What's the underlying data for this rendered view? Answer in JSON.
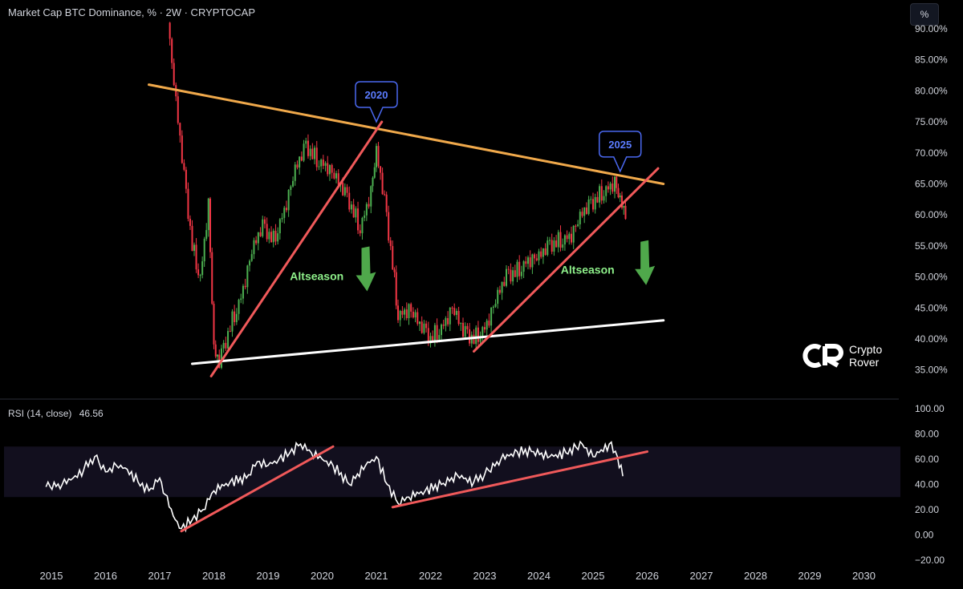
{
  "header": {
    "title": "Market Cap BTC Dominance, % · 2W · CRYPTOCAP",
    "unit_button": "%"
  },
  "rsi": {
    "label": "RSI (14, close)",
    "value": "46.56"
  },
  "brand": {
    "line1": "Crypto",
    "line2": "Rover"
  },
  "chart_data": [
    {
      "type": "candlestick",
      "title": "Market Cap BTC Dominance, % · 2W · CRYPTOCAP",
      "ylim": [
        33,
        92
      ],
      "yticks": [
        "90.00%",
        "85.00%",
        "80.00%",
        "75.00%",
        "70.00%",
        "65.00%",
        "60.00%",
        "55.00%",
        "50.00%",
        "45.00%",
        "40.00%",
        "35.00%"
      ],
      "x_ticks": [
        "2015",
        "2016",
        "2017",
        "2018",
        "2019",
        "2020",
        "2021",
        "2022",
        "2023",
        "2024",
        "2025",
        "2026",
        "2027",
        "2028",
        "2029",
        "2030"
      ],
      "approx_path": [
        {
          "x": 2017.15,
          "y": 91
        },
        {
          "x": 2017.3,
          "y": 78
        },
        {
          "x": 2017.45,
          "y": 66
        },
        {
          "x": 2017.6,
          "y": 55
        },
        {
          "x": 2017.75,
          "y": 50
        },
        {
          "x": 2017.9,
          "y": 62
        },
        {
          "x": 2018.0,
          "y": 38
        },
        {
          "x": 2018.1,
          "y": 36
        },
        {
          "x": 2018.3,
          "y": 42
        },
        {
          "x": 2018.5,
          "y": 47
        },
        {
          "x": 2018.7,
          "y": 54
        },
        {
          "x": 2018.9,
          "y": 58
        },
        {
          "x": 2019.1,
          "y": 56
        },
        {
          "x": 2019.3,
          "y": 61
        },
        {
          "x": 2019.5,
          "y": 67
        },
        {
          "x": 2019.7,
          "y": 71
        },
        {
          "x": 2019.9,
          "y": 69
        },
        {
          "x": 2020.1,
          "y": 68
        },
        {
          "x": 2020.3,
          "y": 65
        },
        {
          "x": 2020.5,
          "y": 62
        },
        {
          "x": 2020.7,
          "y": 58
        },
        {
          "x": 2020.9,
          "y": 64
        },
        {
          "x": 2021.0,
          "y": 70
        },
        {
          "x": 2021.15,
          "y": 62
        },
        {
          "x": 2021.3,
          "y": 52
        },
        {
          "x": 2021.4,
          "y": 44
        },
        {
          "x": 2021.6,
          "y": 45
        },
        {
          "x": 2021.8,
          "y": 42
        },
        {
          "x": 2022.0,
          "y": 40
        },
        {
          "x": 2022.2,
          "y": 42
        },
        {
          "x": 2022.4,
          "y": 45
        },
        {
          "x": 2022.6,
          "y": 41
        },
        {
          "x": 2022.8,
          "y": 40
        },
        {
          "x": 2023.0,
          "y": 42
        },
        {
          "x": 2023.2,
          "y": 46
        },
        {
          "x": 2023.4,
          "y": 50
        },
        {
          "x": 2023.6,
          "y": 51
        },
        {
          "x": 2023.8,
          "y": 53
        },
        {
          "x": 2024.0,
          "y": 53
        },
        {
          "x": 2024.2,
          "y": 55
        },
        {
          "x": 2024.4,
          "y": 56
        },
        {
          "x": 2024.6,
          "y": 57
        },
        {
          "x": 2024.8,
          "y": 60
        },
        {
          "x": 2025.0,
          "y": 62
        },
        {
          "x": 2025.2,
          "y": 64
        },
        {
          "x": 2025.4,
          "y": 65.5
        },
        {
          "x": 2025.5,
          "y": 62
        },
        {
          "x": 2025.6,
          "y": 60
        }
      ],
      "trendlines": [
        {
          "color": "#f0a94b",
          "from": {
            "x": 2016.8,
            "y": 81
          },
          "to": {
            "x": 2026.3,
            "y": 65
          }
        },
        {
          "color": "#ffffff",
          "from": {
            "x": 2017.6,
            "y": 36
          },
          "to": {
            "x": 2026.3,
            "y": 43
          }
        },
        {
          "color": "#f0595a",
          "from": {
            "x": 2017.95,
            "y": 34
          },
          "to": {
            "x": 2021.1,
            "y": 75
          }
        },
        {
          "color": "#f0595a",
          "from": {
            "x": 2022.8,
            "y": 38
          },
          "to": {
            "x": 2026.2,
            "y": 67.5
          }
        }
      ],
      "annotations": [
        {
          "text": "2020",
          "kind": "callout",
          "x": 2021.0,
          "y": 74.5
        },
        {
          "text": "2025",
          "kind": "callout",
          "x": 2025.5,
          "y": 66.5
        },
        {
          "text": "Altseason",
          "kind": "label",
          "x": 2019.9,
          "y": 49.5
        },
        {
          "text": "Altseason",
          "kind": "label",
          "x": 2024.9,
          "y": 50.5
        }
      ],
      "colors": {
        "up": "#4caf50",
        "down": "#f23645",
        "background": "#000000"
      }
    },
    {
      "type": "line",
      "title": "RSI (14, close)",
      "last_value": 46.56,
      "ylim": [
        -25,
        105
      ],
      "yticks": [
        "100.00",
        "80.00",
        "60.00",
        "40.00",
        "20.00",
        "0.00",
        "−20.00"
      ],
      "band": [
        30,
        70
      ],
      "series": [
        {
          "values": [
            {
              "x": 2014.9,
              "y": 38
            },
            {
              "x": 2015.2,
              "y": 40
            },
            {
              "x": 2015.4,
              "y": 45
            },
            {
              "x": 2015.6,
              "y": 52
            },
            {
              "x": 2015.8,
              "y": 62
            },
            {
              "x": 2016.0,
              "y": 50
            },
            {
              "x": 2016.2,
              "y": 55
            },
            {
              "x": 2016.4,
              "y": 52
            },
            {
              "x": 2016.6,
              "y": 42
            },
            {
              "x": 2016.8,
              "y": 35
            },
            {
              "x": 2017.0,
              "y": 45
            },
            {
              "x": 2017.1,
              "y": 32
            },
            {
              "x": 2017.25,
              "y": 15
            },
            {
              "x": 2017.4,
              "y": 5
            },
            {
              "x": 2017.6,
              "y": 12
            },
            {
              "x": 2017.8,
              "y": 20
            },
            {
              "x": 2018.0,
              "y": 35
            },
            {
              "x": 2018.3,
              "y": 42
            },
            {
              "x": 2018.6,
              "y": 45
            },
            {
              "x": 2018.8,
              "y": 58
            },
            {
              "x": 2019.0,
              "y": 55
            },
            {
              "x": 2019.2,
              "y": 60
            },
            {
              "x": 2019.4,
              "y": 65
            },
            {
              "x": 2019.6,
              "y": 72
            },
            {
              "x": 2019.8,
              "y": 65
            },
            {
              "x": 2020.0,
              "y": 60
            },
            {
              "x": 2020.2,
              "y": 55
            },
            {
              "x": 2020.5,
              "y": 40
            },
            {
              "x": 2020.8,
              "y": 55
            },
            {
              "x": 2021.0,
              "y": 62
            },
            {
              "x": 2021.2,
              "y": 40
            },
            {
              "x": 2021.4,
              "y": 25
            },
            {
              "x": 2021.6,
              "y": 30
            },
            {
              "x": 2021.9,
              "y": 35
            },
            {
              "x": 2022.2,
              "y": 40
            },
            {
              "x": 2022.5,
              "y": 47
            },
            {
              "x": 2022.8,
              "y": 42
            },
            {
              "x": 2023.0,
              "y": 48
            },
            {
              "x": 2023.3,
              "y": 60
            },
            {
              "x": 2023.6,
              "y": 66
            },
            {
              "x": 2023.9,
              "y": 66
            },
            {
              "x": 2024.2,
              "y": 62
            },
            {
              "x": 2024.5,
              "y": 65
            },
            {
              "x": 2024.8,
              "y": 72
            },
            {
              "x": 2025.0,
              "y": 62
            },
            {
              "x": 2025.3,
              "y": 72
            },
            {
              "x": 2025.45,
              "y": 62
            },
            {
              "x": 2025.55,
              "y": 46.56
            }
          ]
        }
      ],
      "trendlines": [
        {
          "color": "#f0595a",
          "from": {
            "x": 2017.4,
            "y": 3
          },
          "to": {
            "x": 2020.2,
            "y": 70
          }
        },
        {
          "color": "#f0595a",
          "from": {
            "x": 2021.3,
            "y": 22
          },
          "to": {
            "x": 2026.0,
            "y": 66
          }
        }
      ]
    }
  ]
}
